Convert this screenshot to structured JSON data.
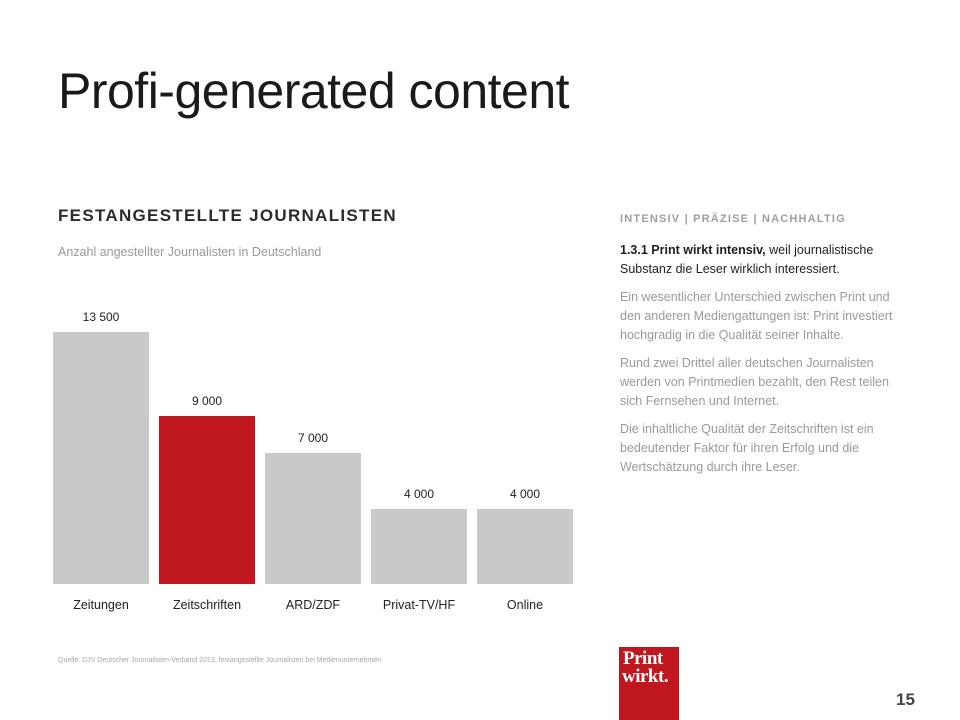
{
  "title": "Profi-generated content",
  "section": {
    "heading": "FESTANGESTELLTE  JOURNALISTEN",
    "subtitle": "Anzahl angestellter Journalisten in Deutschland"
  },
  "chart_data": {
    "type": "bar",
    "title": "FESTANGESTELLTE  JOURNALISTEN",
    "subtitle": "Anzahl angestellter Journalisten in Deutschland",
    "categories": [
      "Zeitungen",
      "Zeitschriften",
      "ARD/ZDF",
      "Privat-TV/HF",
      "Online"
    ],
    "values": [
      13500,
      9000,
      7000,
      4000,
      4000
    ],
    "value_labels": [
      "13 500",
      "9 000",
      "7 000",
      "4 000",
      "4 000"
    ],
    "bar_colors": [
      "#c8c9c9",
      "#c0171f",
      "#c8c9c9",
      "#c8c9c9",
      "#c8c9c9"
    ],
    "ylim": [
      0,
      13500
    ],
    "grid": false,
    "legend": "none",
    "xlabel": "",
    "ylabel": ""
  },
  "source": "Quelle: DJV Deutscher Journalisten-Verband 2013, festangestellte Journalisten bei Medienunternehmen",
  "sidebar": {
    "kicker": "INTENSIV  |  PRÄZISE  |  NACHHALTIG",
    "lead_bold": "1.3.1 Print wirkt intensiv,",
    "lead_rest": " weil journalistische Substanz die Leser wirklich interessiert.",
    "paragraphs": [
      "Ein wesentlicher Unterschied zwischen Print und den anderen Mediengattungen ist: Print investiert hochgradig in die Qualität seiner Inhalte.",
      "Rund zwei Drittel aller deutschen Journalisten werden von Printmedien bezahlt, den Rest teilen sich Fernsehen und Internet.",
      "Die inhaltliche Qualität der Zeitschriften ist ein bedeutender Faktor für ihren Erfolg und die Wertschätzung durch ihre Leser."
    ]
  },
  "logo": {
    "line1": "Print",
    "line2": "wirkt."
  },
  "page_number": "15",
  "colors": {
    "accent": "#c0171f",
    "bar_gray": "#c8c9c9",
    "muted_text": "#9a9a9a"
  }
}
